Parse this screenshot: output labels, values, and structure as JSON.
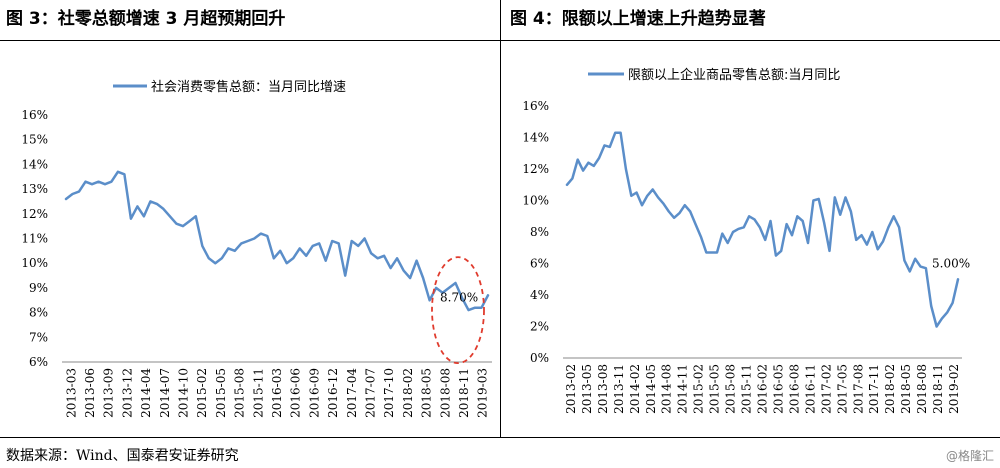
{
  "panels": {
    "left_title": "图 3：社零总额增速 3 月超预期回升",
    "right_title": "图 4：限额以上增速上升趋势显著"
  },
  "footer": {
    "source": "数据来源：Wind、国泰君安证券研究",
    "watermark": "@格隆汇"
  },
  "colors": {
    "series": "#5b8ec9",
    "highlight": "#e03b2d"
  },
  "chart_data": [
    {
      "type": "line",
      "title": "",
      "legend": "社会消费零售总额：当月同比增速",
      "legend_position": "top",
      "x_ticks": [
        "2013-03",
        "2013-06",
        "2013-09",
        "2013-12",
        "2014-04",
        "2014-07",
        "2014-10",
        "2015-02",
        "2015-05",
        "2015-08",
        "2015-11",
        "2016-03",
        "2016-06",
        "2016-09",
        "2016-12",
        "2017-04",
        "2017-07",
        "2017-10",
        "2018-02",
        "2018-05",
        "2018-08",
        "2018-11",
        "2019-03"
      ],
      "y_ticks": [
        "6%",
        "7%",
        "8%",
        "9%",
        "10%",
        "11%",
        "12%",
        "13%",
        "14%",
        "15%",
        "16%"
      ],
      "ylim": [
        6,
        16
      ],
      "grid": false,
      "series": [
        {
          "name": "社会消费零售总额：当月同比增速",
          "values": [
            12.6,
            12.8,
            12.9,
            13.3,
            13.2,
            13.3,
            13.2,
            13.3,
            13.7,
            13.6,
            11.8,
            12.3,
            11.9,
            12.5,
            12.4,
            12.2,
            11.9,
            11.6,
            11.5,
            11.7,
            11.9,
            10.7,
            10.2,
            10.0,
            10.2,
            10.6,
            10.5,
            10.8,
            10.9,
            11.0,
            11.2,
            11.1,
            10.2,
            10.5,
            10.0,
            10.2,
            10.6,
            10.3,
            10.7,
            10.8,
            10.1,
            10.9,
            10.8,
            9.5,
            10.9,
            10.7,
            11.0,
            10.4,
            10.2,
            10.3,
            9.8,
            10.2,
            9.7,
            9.4,
            10.1,
            9.4,
            8.5,
            9.0,
            8.8,
            9.0,
            9.2,
            8.6,
            8.1,
            8.2,
            8.2,
            8.7
          ]
        }
      ],
      "annotation": {
        "text": "8.70%"
      }
    },
    {
      "type": "line",
      "title": "",
      "legend": "限额以上企业商品零售总额:当月同比",
      "legend_position": "top",
      "x_ticks": [
        "2013-02",
        "2013-05",
        "2013-08",
        "2013-11",
        "2014-02",
        "2014-05",
        "2014-08",
        "2014-11",
        "2015-02",
        "2015-05",
        "2015-08",
        "2015-11",
        "2016-02",
        "2016-05",
        "2016-08",
        "2016-11",
        "2017-02",
        "2017-05",
        "2017-08",
        "2017-11",
        "2018-02",
        "2018-05",
        "2018-08",
        "2018-11",
        "2019-02"
      ],
      "y_ticks": [
        "0%",
        "2%",
        "4%",
        "6%",
        "8%",
        "10%",
        "12%",
        "14%",
        "16%"
      ],
      "ylim": [
        0,
        16
      ],
      "grid": false,
      "series": [
        {
          "name": "限额以上企业商品零售总额:当月同比",
          "values": [
            11.0,
            11.4,
            12.6,
            11.9,
            12.4,
            12.2,
            12.7,
            13.5,
            13.4,
            14.3,
            14.3,
            12.0,
            10.3,
            10.5,
            9.7,
            10.3,
            10.7,
            10.2,
            9.8,
            9.3,
            8.9,
            9.2,
            9.7,
            9.3,
            8.5,
            7.7,
            6.7,
            6.7,
            6.7,
            7.9,
            7.3,
            8.0,
            8.2,
            8.3,
            9.0,
            8.8,
            8.3,
            7.5,
            8.7,
            6.5,
            6.8,
            8.5,
            7.8,
            9.0,
            8.7,
            7.3,
            10.0,
            10.1,
            8.6,
            6.8,
            10.2,
            9.1,
            10.2,
            9.3,
            7.5,
            7.8,
            7.2,
            8.0,
            6.9,
            7.4,
            8.3,
            9.0,
            8.3,
            6.2,
            5.5,
            6.3,
            5.8,
            5.7,
            3.3,
            2.0,
            2.5,
            2.9,
            3.5,
            5.0
          ]
        }
      ],
      "annotation": {
        "text": "5.00%"
      }
    }
  ]
}
